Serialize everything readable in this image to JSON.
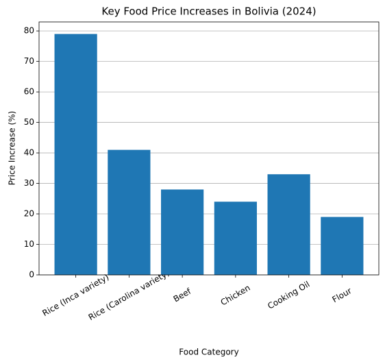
{
  "chart_data": {
    "type": "bar",
    "title": "Key Food Price Increases in Bolivia (2024)",
    "x_label": "Food Category",
    "y_label": "Price Increase (%)",
    "categories": [
      "Rice (Inca variety)",
      "Rice (Carolina variety)",
      "Beef",
      "Chicken",
      "Cooking Oil",
      "Flour"
    ],
    "values": [
      79,
      41,
      28,
      24,
      33,
      19
    ],
    "color": "#1f77b4",
    "ylim": [
      0,
      82.95
    ],
    "yticks": [
      0,
      10,
      20,
      30,
      40,
      50,
      60,
      70,
      80
    ],
    "grid": true
  }
}
